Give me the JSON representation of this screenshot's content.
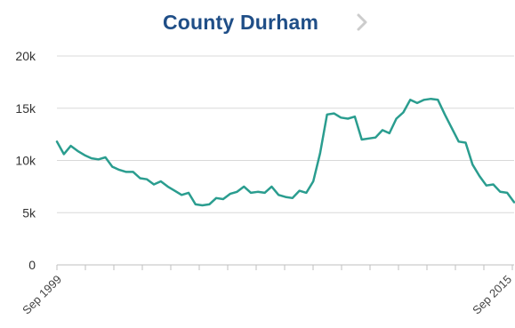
{
  "header": {
    "title": "County Durham",
    "next_icon": "chevron-right-icon"
  },
  "colors": {
    "title": "#1f4e87",
    "line": "#2a9d8f",
    "grid": "#d9d9d9",
    "chevron": "#cccccc"
  },
  "chart_data": {
    "type": "line",
    "title": "County Durham",
    "xlabel": "",
    "ylabel": "",
    "ylim": [
      0,
      20000
    ],
    "yticks": [
      "0",
      "5k",
      "10k",
      "15k",
      "20k"
    ],
    "xticks": [
      "Sep 1999",
      "Sep 2015"
    ],
    "grid": true,
    "series": [
      {
        "values": [
          11800,
          10600,
          11400,
          10900,
          10500,
          10200,
          10100,
          10300,
          9400,
          9100,
          8900,
          8900,
          8300,
          8200,
          7700,
          8000,
          7500,
          7100,
          6700,
          6900,
          5800,
          5700,
          5800,
          6400,
          6300,
          6800,
          7000,
          7500,
          6900,
          7000,
          6900,
          7500,
          6700,
          6500,
          6400,
          7100,
          6900,
          8000,
          10700,
          14400,
          14500,
          14100,
          14000,
          14200,
          12000,
          12100,
          12200,
          12900,
          12600,
          14000,
          14600,
          15800,
          15500,
          15800,
          15900,
          15800,
          14400,
          13100,
          11800,
          11700,
          9600,
          8500,
          7600,
          7700,
          7000,
          6900,
          6000
        ]
      }
    ]
  }
}
